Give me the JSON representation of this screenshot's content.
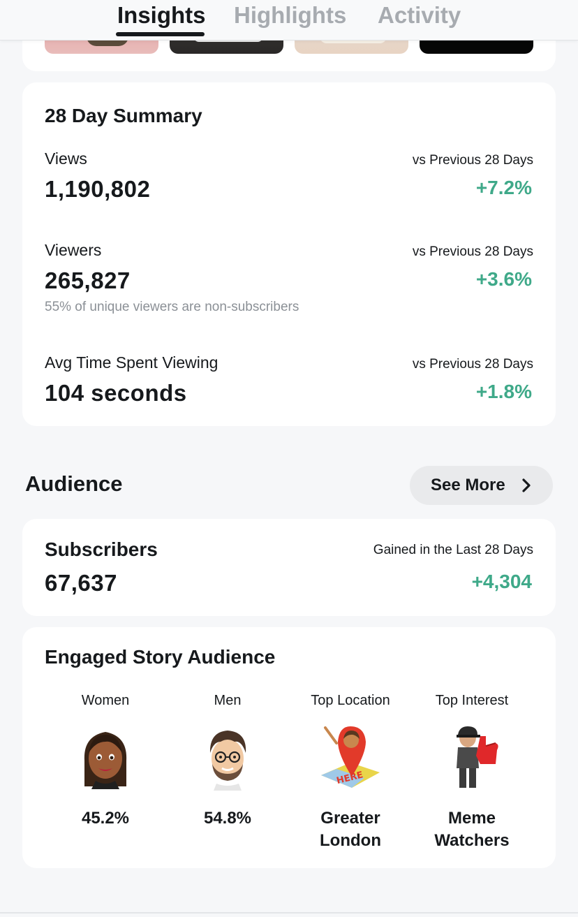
{
  "tabs": [
    {
      "label": "Insights",
      "active": true
    },
    {
      "label": "Highlights",
      "active": false
    },
    {
      "label": "Activity",
      "active": false
    }
  ],
  "summary": {
    "title": "28 Day Summary",
    "metrics": [
      {
        "label": "Views",
        "value": "1,190,802",
        "compare_label": "vs Previous 28 Days",
        "change": "+7.2%"
      },
      {
        "label": "Viewers",
        "value": "265,827",
        "note": "55% of unique viewers are non-subscribers",
        "compare_label": "vs Previous 28 Days",
        "change": "+3.6%"
      },
      {
        "label": "Avg Time Spent Viewing",
        "value": "104 seconds",
        "compare_label": "vs Previous 28 Days",
        "change": "+1.8%"
      }
    ]
  },
  "audience": {
    "title": "Audience",
    "see_more_label": "See More"
  },
  "subscribers": {
    "label": "Subscribers",
    "value": "67,637",
    "compare_label": "Gained in the Last 28 Days",
    "change": "+4,304"
  },
  "engaged": {
    "title": "Engaged Story Audience",
    "columns": [
      {
        "label": "Women",
        "value": "45.2%",
        "icon": "bitmoji-woman-icon"
      },
      {
        "label": "Men",
        "value": "54.8%",
        "icon": "bitmoji-man-icon"
      },
      {
        "label": "Top Location",
        "value_line1": "Greater",
        "value_line2": "London",
        "icon": "im-here-location-icon"
      },
      {
        "label": "Top Interest",
        "value_line1": "Meme",
        "value_line2": "Watchers",
        "icon": "foam-finger-icon"
      }
    ]
  },
  "colors": {
    "positive": "#3fa989",
    "text": "#16191c",
    "muted": "#8b9096",
    "background": "#f6f7f9"
  }
}
